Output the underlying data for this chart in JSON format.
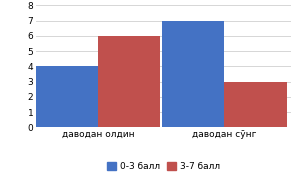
{
  "categories": [
    "даводан олдин",
    "даводан сӯнг"
  ],
  "series": [
    {
      "label": "0-3 балл",
      "values": [
        4,
        7
      ],
      "color": "#4472C4"
    },
    {
      "label": "3-7 балл",
      "values": [
        6,
        3
      ],
      "color": "#C0504D"
    }
  ],
  "ylim": [
    0,
    8
  ],
  "yticks": [
    0,
    1,
    2,
    3,
    4,
    5,
    6,
    7,
    8
  ],
  "background_color": "#FFFFFF",
  "plot_bg_color": "#FFFFFF",
  "bar_width": 0.28,
  "x_positions": [
    0.28,
    0.85
  ]
}
